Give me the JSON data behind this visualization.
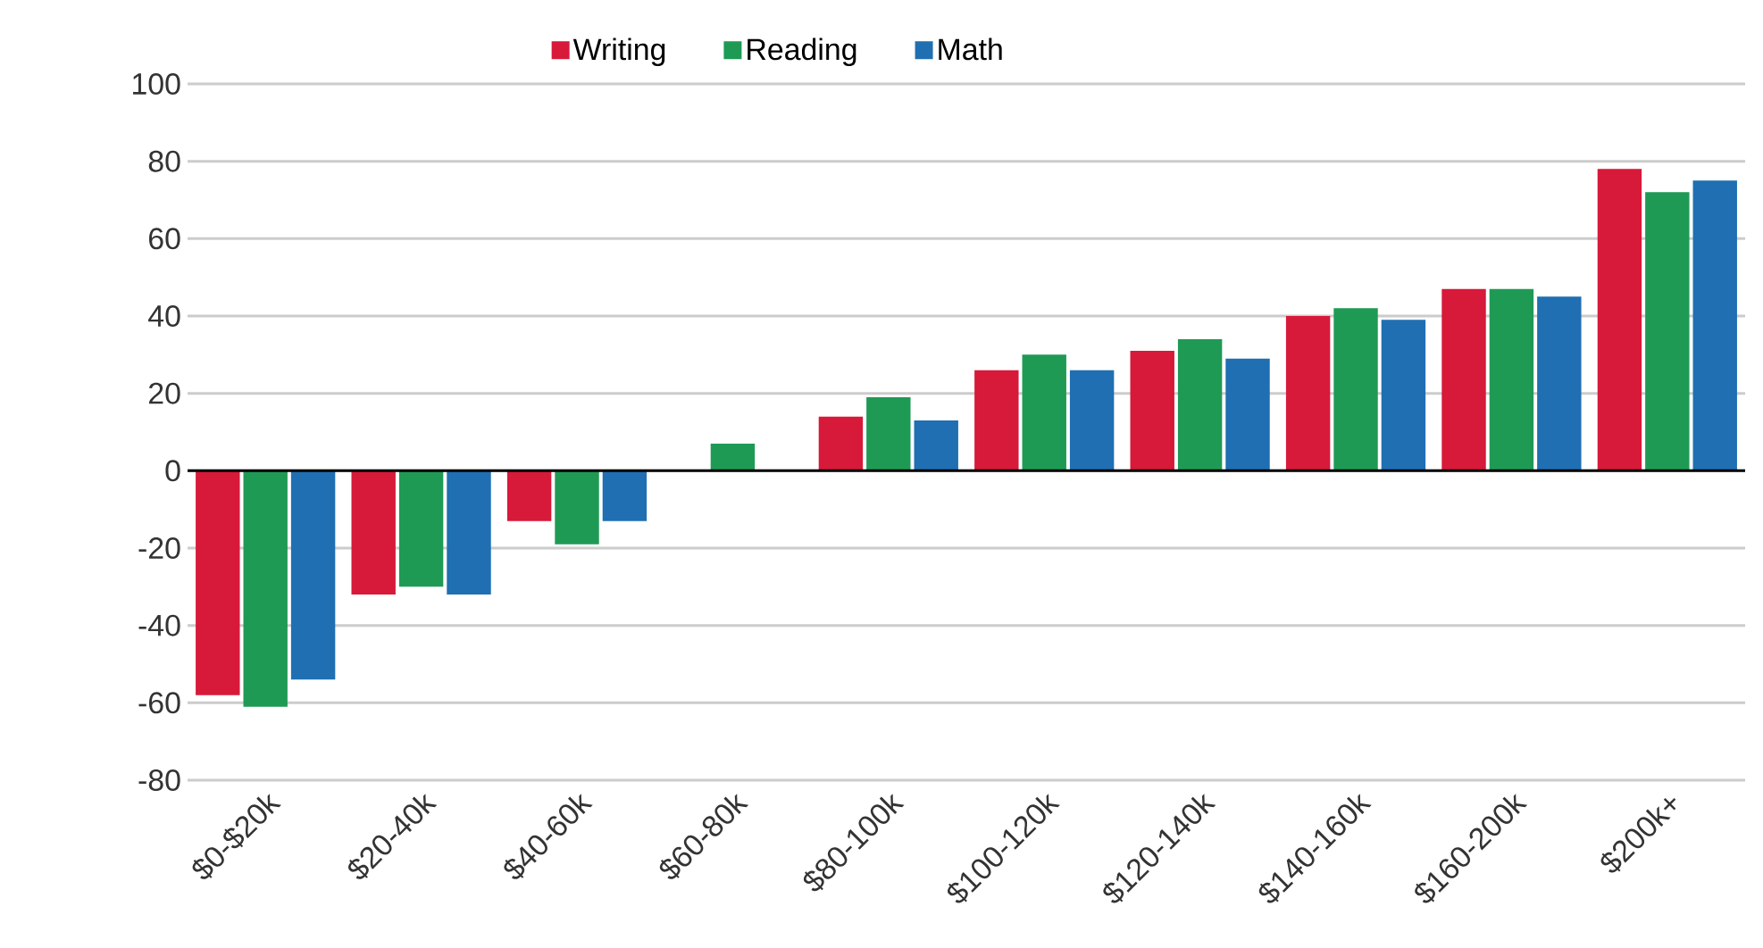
{
  "chart_data": {
    "type": "bar",
    "categories": [
      "$0-$20k",
      "$20-40k",
      "$40-60k",
      "$60-80k",
      "$80-100k",
      "$100-120k",
      "$120-140k",
      "$140-160k",
      "$160-200k",
      "$200k+"
    ],
    "series": [
      {
        "name": "Writing",
        "color": "#d7193a",
        "values": [
          -58,
          -32,
          -13,
          0,
          14,
          26,
          31,
          40,
          47,
          78
        ]
      },
      {
        "name": "Reading",
        "color": "#1f9a55",
        "values": [
          -61,
          -30,
          -19,
          7,
          19,
          30,
          34,
          42,
          47,
          72
        ]
      },
      {
        "name": "Math",
        "color": "#1f6fb2",
        "values": [
          -54,
          -32,
          -13,
          0,
          13,
          26,
          29,
          39,
          45,
          75
        ]
      }
    ],
    "ylim": [
      -80,
      100
    ],
    "yticks": [
      -80,
      -60,
      -40,
      -20,
      0,
      20,
      40,
      60,
      80,
      100
    ],
    "grid": "y",
    "legend": "top"
  }
}
